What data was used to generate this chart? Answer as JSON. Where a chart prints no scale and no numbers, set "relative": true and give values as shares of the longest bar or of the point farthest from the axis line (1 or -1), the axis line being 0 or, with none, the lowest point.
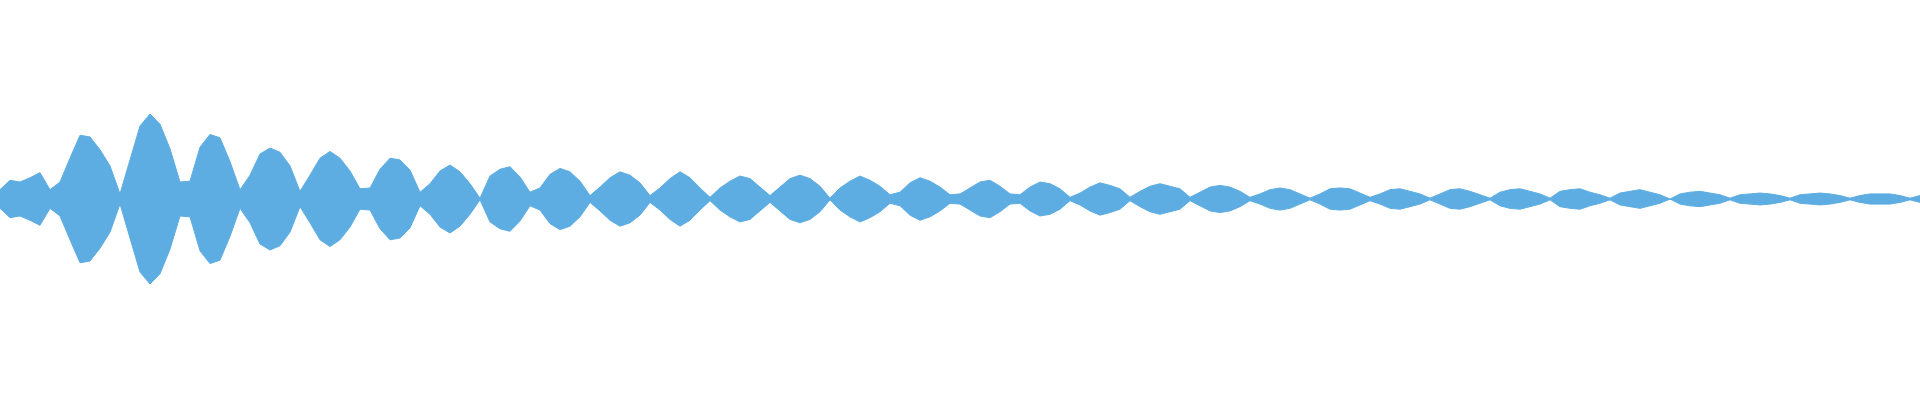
{
  "chart_data": {
    "type": "area",
    "relative": true,
    "categories": [
      null,
      null,
      null,
      null,
      null,
      null,
      null,
      null,
      null,
      null,
      null,
      null,
      null,
      null,
      null,
      null,
      null,
      null,
      null,
      null,
      null,
      null,
      null,
      null,
      null,
      null,
      null,
      null,
      null,
      null,
      null,
      null,
      null,
      null,
      null,
      null,
      null,
      null,
      null,
      null,
      null,
      null,
      null,
      null,
      null,
      null,
      null,
      null,
      null,
      null,
      null,
      null,
      null,
      null,
      null,
      null,
      null,
      null,
      null,
      null,
      null,
      null,
      null,
      null,
      null,
      null,
      null,
      null,
      null,
      null,
      null,
      null,
      null,
      null,
      null,
      null,
      null,
      null,
      null,
      null,
      null,
      null,
      null,
      null,
      null,
      null,
      null,
      null,
      null,
      null,
      null,
      null,
      null,
      null,
      null,
      null,
      null,
      null,
      null,
      null,
      null,
      null,
      null,
      null,
      null,
      null,
      null,
      null,
      null,
      null,
      null,
      null,
      null,
      null,
      null,
      null,
      null,
      null,
      null,
      null,
      null,
      null,
      null,
      null,
      null,
      null,
      null,
      null,
      null,
      null,
      null,
      null,
      null,
      null,
      null,
      null,
      null,
      null,
      null,
      null,
      null,
      null,
      null,
      null,
      null,
      null,
      null,
      null,
      null,
      null,
      null,
      null,
      null,
      null,
      null,
      null,
      null,
      null,
      null,
      null,
      null,
      null,
      null,
      null,
      null,
      null,
      null,
      null,
      null,
      null,
      null,
      null,
      null,
      null,
      null,
      null,
      null,
      null,
      null,
      null,
      null,
      null,
      null,
      null,
      null,
      null,
      null,
      null,
      null,
      null,
      null,
      null,
      null
    ],
    "series": [
      {
        "color": "#5dade2",
        "values": [
          0.11,
          0.22,
          0.2,
          0.25,
          0.31,
          0.11,
          0.2,
          0.48,
          0.75,
          0.73,
          0.58,
          0.39,
          0.06,
          0.46,
          0.86,
          1,
          0.88,
          0.59,
          0.2,
          0.21,
          0.61,
          0.76,
          0.72,
          0.44,
          0.11,
          0.28,
          0.53,
          0.6,
          0.55,
          0.39,
          0.09,
          0.28,
          0.48,
          0.56,
          0.48,
          0.33,
          0.12,
          0.13,
          0.35,
          0.48,
          0.46,
          0.34,
          0.08,
          0.18,
          0.33,
          0.4,
          0.32,
          0.18,
          0.01,
          0.27,
          0.35,
          0.38,
          0.26,
          0.08,
          0.13,
          0.29,
          0.36,
          0.32,
          0.21,
          0.04,
          0.14,
          0.25,
          0.32,
          0.28,
          0.19,
          0.04,
          0.13,
          0.24,
          0.32,
          0.25,
          0.13,
          0.02,
          0.13,
          0.21,
          0.27,
          0.24,
          0.14,
          0.04,
          0.14,
          0.24,
          0.28,
          0.24,
          0.15,
          0.01,
          0.13,
          0.21,
          0.27,
          0.22,
          0.15,
          0.05,
          0.08,
          0.19,
          0.25,
          0.21,
          0.14,
          0.05,
          0.06,
          0.13,
          0.2,
          0.22,
          0.15,
          0.06,
          0.05,
          0.14,
          0.2,
          0.18,
          0.12,
          0.02,
          0.07,
          0.14,
          0.19,
          0.16,
          0.12,
          0.02,
          0.09,
          0.15,
          0.18,
          0.15,
          0.12,
          0.02,
          0.08,
          0.14,
          0.16,
          0.14,
          0.09,
          0.02,
          0.06,
          0.11,
          0.13,
          0.11,
          0.06,
          0.01,
          0.06,
          0.12,
          0.13,
          0.12,
          0.07,
          0.02,
          0.06,
          0.11,
          0.12,
          0.09,
          0.06,
          0.01,
          0.06,
          0.11,
          0.12,
          0.09,
          0.05,
          0.01,
          0.08,
          0.11,
          0.12,
          0.09,
          0.06,
          0.01,
          0.09,
          0.11,
          0.12,
          0.08,
          0.05,
          0.01,
          0.07,
          0.09,
          0.11,
          0.08,
          0.05,
          0,
          0.06,
          0.08,
          0.09,
          0.07,
          0.05,
          0.01,
          0.05,
          0.06,
          0.07,
          0.06,
          0.04,
          0.01,
          0.05,
          0.06,
          0.07,
          0.06,
          0.04,
          0.01,
          0.04,
          0.06,
          0.06,
          0.06,
          0.04,
          0.01,
          0.04
        ]
      },
      {
        "color": "#5dade2",
        "values": [
          -0.11,
          -0.22,
          -0.2,
          -0.25,
          -0.31,
          -0.11,
          -0.2,
          -0.48,
          -0.75,
          -0.73,
          -0.58,
          -0.39,
          -0.06,
          -0.46,
          -0.86,
          -1,
          -0.88,
          -0.59,
          -0.2,
          -0.21,
          -0.61,
          -0.76,
          -0.72,
          -0.44,
          -0.11,
          -0.28,
          -0.53,
          -0.6,
          -0.55,
          -0.39,
          -0.09,
          -0.28,
          -0.48,
          -0.56,
          -0.48,
          -0.33,
          -0.12,
          -0.13,
          -0.35,
          -0.48,
          -0.46,
          -0.34,
          -0.08,
          -0.18,
          -0.33,
          -0.4,
          -0.32,
          -0.18,
          -0.01,
          -0.27,
          -0.35,
          -0.38,
          -0.26,
          -0.08,
          -0.13,
          -0.29,
          -0.36,
          -0.32,
          -0.21,
          -0.04,
          -0.14,
          -0.25,
          -0.32,
          -0.28,
          -0.19,
          -0.04,
          -0.13,
          -0.24,
          -0.32,
          -0.25,
          -0.13,
          -0.02,
          -0.13,
          -0.21,
          -0.27,
          -0.24,
          -0.14,
          -0.04,
          -0.14,
          -0.24,
          -0.28,
          -0.24,
          -0.15,
          -0.01,
          -0.13,
          -0.21,
          -0.27,
          -0.22,
          -0.15,
          -0.05,
          -0.08,
          -0.19,
          -0.25,
          -0.21,
          -0.14,
          -0.05,
          -0.06,
          -0.13,
          -0.2,
          -0.22,
          -0.15,
          -0.06,
          -0.05,
          -0.14,
          -0.2,
          -0.18,
          -0.12,
          -0.02,
          -0.07,
          -0.14,
          -0.19,
          -0.16,
          -0.12,
          -0.02,
          -0.09,
          -0.15,
          -0.18,
          -0.15,
          -0.12,
          -0.02,
          -0.08,
          -0.14,
          -0.16,
          -0.14,
          -0.09,
          -0.02,
          -0.06,
          -0.11,
          -0.13,
          -0.11,
          -0.06,
          -0.01,
          -0.06,
          -0.12,
          -0.13,
          -0.12,
          -0.07,
          -0.02,
          -0.06,
          -0.11,
          -0.12,
          -0.09,
          -0.06,
          -0.01,
          -0.06,
          -0.11,
          -0.12,
          -0.09,
          -0.05,
          -0.01,
          -0.08,
          -0.11,
          -0.12,
          -0.09,
          -0.06,
          -0.01,
          -0.09,
          -0.11,
          -0.12,
          -0.08,
          -0.05,
          -0.01,
          -0.07,
          -0.09,
          -0.11,
          -0.08,
          -0.05,
          0,
          -0.06,
          -0.08,
          -0.09,
          -0.07,
          -0.05,
          -0.01,
          -0.05,
          -0.06,
          -0.07,
          -0.06,
          -0.04,
          -0.01,
          -0.05,
          -0.06,
          -0.07,
          -0.06,
          -0.04,
          -0.01,
          -0.04,
          -0.06,
          -0.06,
          -0.06,
          -0.04,
          -0.01,
          -0.04
        ]
      }
    ]
  }
}
